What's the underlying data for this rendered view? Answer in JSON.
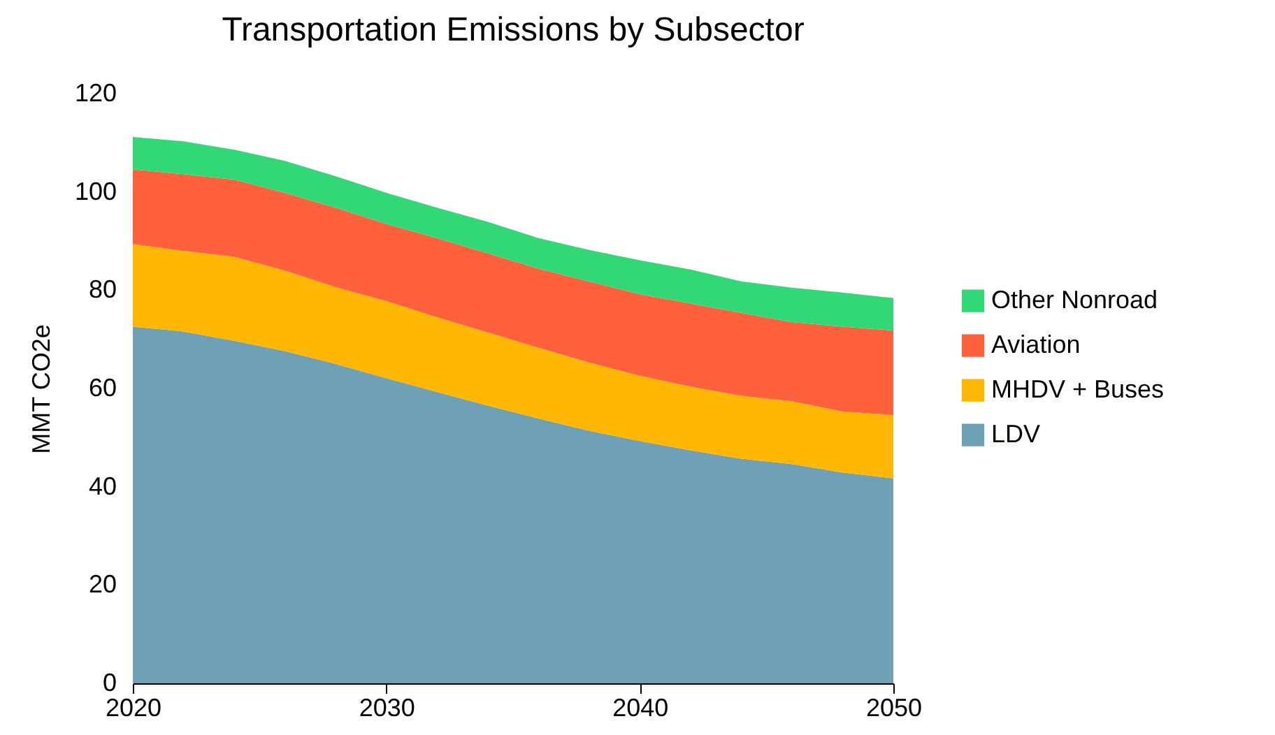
{
  "chart_data": {
    "type": "area",
    "title": "Transportation Emissions by Subsector",
    "ylabel": "MMT CO2e",
    "x": [
      2020,
      2022,
      2024,
      2026,
      2028,
      2030,
      2032,
      2034,
      2036,
      2038,
      2040,
      2042,
      2044,
      2046,
      2048,
      2050
    ],
    "stacked": true,
    "series": [
      {
        "name": "LDV",
        "color": "#6ea1b6",
        "values": [
          72.6,
          71.6,
          69.7,
          67.6,
          65.0,
          62.1,
          59.3,
          56.5,
          53.9,
          51.4,
          49.3,
          47.4,
          45.7,
          44.6,
          42.9,
          41.7
        ]
      },
      {
        "name": "MHDV + Buses",
        "color": "#ffb703",
        "values": [
          16.8,
          16.4,
          17.1,
          16.4,
          15.6,
          15.7,
          15.2,
          14.9,
          14.4,
          13.9,
          13.3,
          13.0,
          12.8,
          12.8,
          12.4,
          12.9
        ]
      },
      {
        "name": "Aviation",
        "color": "#ff613c",
        "values": [
          15.2,
          15.6,
          15.7,
          15.8,
          16.2,
          15.7,
          16.1,
          16.1,
          16.1,
          16.5,
          16.6,
          16.9,
          16.9,
          16.1,
          17.3,
          17.2
        ]
      },
      {
        "name": "Other Nonroad",
        "color": "#33d876",
        "values": [
          6.6,
          6.7,
          6.1,
          6.5,
          6.4,
          6.3,
          6.2,
          6.4,
          6.2,
          6.4,
          6.9,
          6.9,
          6.4,
          7.0,
          6.9,
          6.6
        ]
      }
    ],
    "xlim": [
      2020,
      2050
    ],
    "xticks": [
      2020,
      2030,
      2040,
      2050
    ],
    "ylim": [
      0,
      120
    ],
    "yticks": [
      0,
      20,
      40,
      60,
      80,
      100,
      120
    ],
    "grid": false,
    "legend": "right"
  }
}
